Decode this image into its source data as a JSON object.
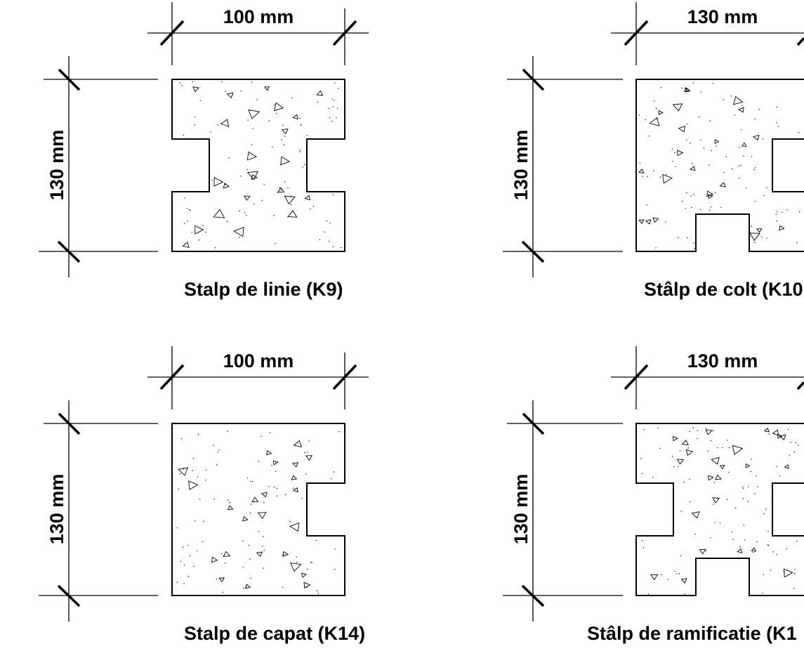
{
  "panels": [
    {
      "width_label": "100 mm",
      "height_label": "130 mm",
      "caption": "Stalp de linie (K9)"
    },
    {
      "width_label": "130 mm",
      "height_label": "130 mm",
      "caption": "Stâlp de colt (K10"
    },
    {
      "width_label": "100 mm",
      "height_label": "130 mm",
      "caption": "Stalp de capat (K14)"
    },
    {
      "width_label": "130 mm",
      "height_label": "130 mm",
      "caption": "Stâlp de ramificatie (K1"
    }
  ],
  "colors": {
    "line": "#000000",
    "background": "#ffffff"
  }
}
